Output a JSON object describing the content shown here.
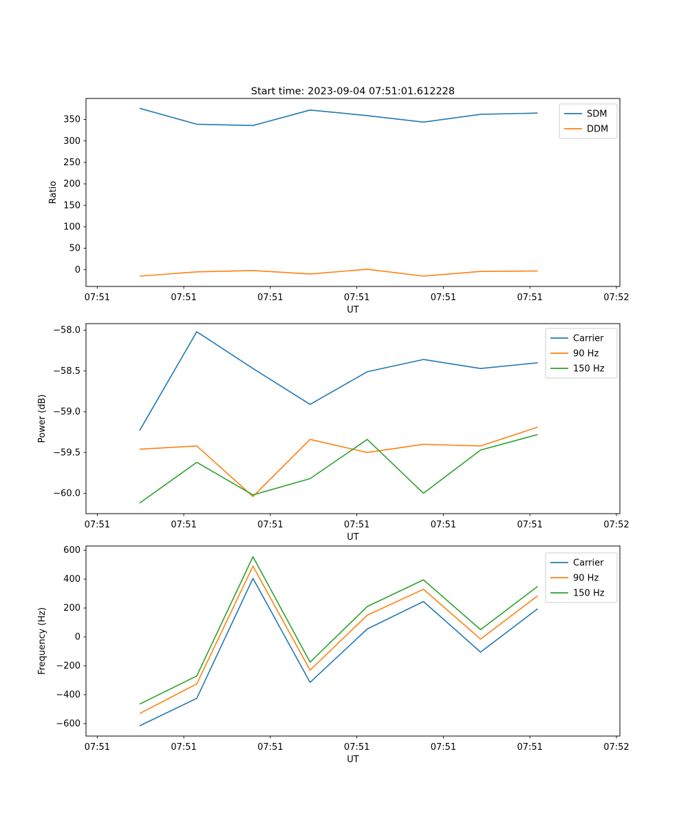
{
  "figure": {
    "title": "Start time: 2023-09-04 07:51:01.612228"
  },
  "chart_data": [
    {
      "type": "line",
      "title": "Start time: 2023-09-04 07:51:01.612228",
      "xlabel": "UT",
      "ylabel": "Ratio",
      "legend_position": "upper right",
      "grid": false,
      "x_tick_labels": [
        "07:51",
        "07:51",
        "07:51",
        "07:51",
        "07:51",
        "07:51",
        "07:52"
      ],
      "x": [
        0.49,
        1.15,
        1.8,
        2.46,
        3.12,
        3.77,
        4.43,
        5.09
      ],
      "xlim": [
        -0.13,
        6.04
      ],
      "ylim": [
        -39,
        399
      ],
      "y_ticks": [
        0,
        50,
        100,
        150,
        200,
        250,
        300,
        350
      ],
      "y_tick_labels": [
        "0",
        "50",
        "100",
        "150",
        "200",
        "250",
        "300",
        "350"
      ],
      "series": [
        {
          "name": "SDM",
          "color": "#1f77b4",
          "values": [
            376,
            339,
            336,
            372,
            359,
            344,
            362,
            365
          ]
        },
        {
          "name": "DDM",
          "color": "#ff7f0e",
          "values": [
            -15,
            -5,
            -2,
            -10,
            1,
            -15,
            -4,
            -3
          ]
        }
      ]
    },
    {
      "type": "line",
      "xlabel": "UT",
      "ylabel": "Power (dB)",
      "legend_position": "upper right",
      "grid": false,
      "x_tick_labels": [
        "07:51",
        "07:51",
        "07:51",
        "07:51",
        "07:51",
        "07:51",
        "07:52"
      ],
      "x": [
        0.49,
        1.15,
        1.8,
        2.46,
        3.12,
        3.77,
        4.43,
        5.09
      ],
      "xlim": [
        -0.13,
        6.04
      ],
      "ylim": [
        -60.25,
        -57.92
      ],
      "y_ticks": [
        -60.0,
        -59.5,
        -59.0,
        -58.5,
        -58.0
      ],
      "y_tick_labels": [
        "−60.0",
        "−59.5",
        "−59.0",
        "−58.5",
        "−58.0"
      ],
      "series": [
        {
          "name": "Carrier",
          "color": "#1f77b4",
          "values": [
            -59.23,
            -58.02,
            -58.47,
            -58.91,
            -58.51,
            -58.36,
            -58.47,
            -58.4
          ]
        },
        {
          "name": "90 Hz",
          "color": "#ff7f0e",
          "values": [
            -59.46,
            -59.42,
            -60.04,
            -59.34,
            -59.5,
            -59.4,
            -59.42,
            -59.19
          ]
        },
        {
          "name": "150 Hz",
          "color": "#2ca02c",
          "values": [
            -60.12,
            -59.62,
            -60.02,
            -59.82,
            -59.34,
            -60.0,
            -59.47,
            -59.28
          ]
        }
      ]
    },
    {
      "type": "line",
      "xlabel": "UT",
      "ylabel": "Frequency (Hz)",
      "legend_position": "upper right",
      "grid": false,
      "x_tick_labels": [
        "07:51",
        "07:51",
        "07:51",
        "07:51",
        "07:51",
        "07:51",
        "07:52"
      ],
      "x": [
        0.49,
        1.15,
        1.8,
        2.46,
        3.12,
        3.77,
        4.43,
        5.09
      ],
      "xlim": [
        -0.13,
        6.04
      ],
      "ylim": [
        -686,
        629
      ],
      "y_ticks": [
        -600,
        -400,
        -200,
        0,
        200,
        400,
        600
      ],
      "y_tick_labels": [
        "−600",
        "−400",
        "−200",
        "0",
        "200",
        "400",
        "600"
      ],
      "series": [
        {
          "name": "Carrier",
          "color": "#1f77b4",
          "values": [
            -615,
            -425,
            405,
            -315,
            55,
            245,
            -105,
            195
          ]
        },
        {
          "name": "90 Hz",
          "color": "#ff7f0e",
          "values": [
            -530,
            -325,
            490,
            -230,
            150,
            330,
            -15,
            285
          ]
        },
        {
          "name": "150 Hz",
          "color": "#2ca02c",
          "values": [
            -465,
            -270,
            555,
            -175,
            210,
            395,
            50,
            350
          ]
        }
      ]
    }
  ]
}
